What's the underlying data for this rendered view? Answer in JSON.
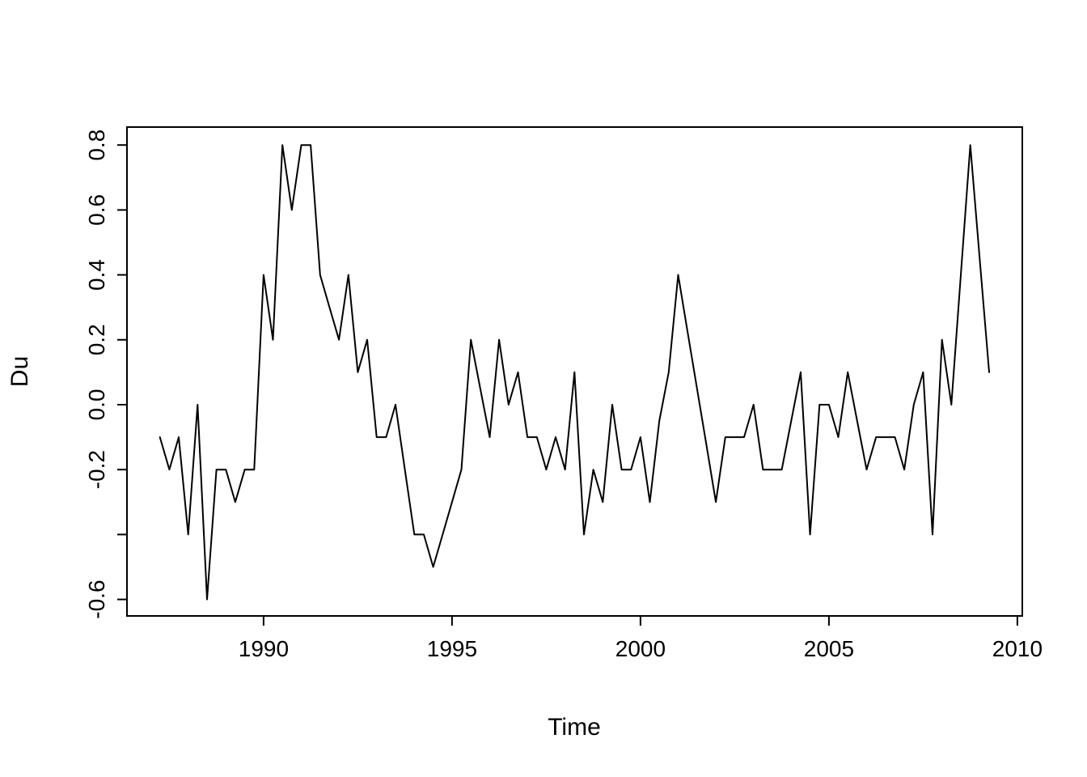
{
  "chart_data": {
    "type": "line",
    "title": "",
    "xlabel": "Time",
    "ylabel": "Du",
    "line_color": "#000000",
    "background_color": "#ffffff",
    "grid": "off",
    "legend": "none",
    "x_start": 1987.25,
    "x_step": 0.25,
    "xlim": [
      1986.36,
      2010.14
    ],
    "ylim": [
      -0.656,
      0.856
    ],
    "x_ticks": [
      {
        "v": 1990,
        "label": "1990"
      },
      {
        "v": 1995,
        "label": "1995"
      },
      {
        "v": 2000,
        "label": "2000"
      },
      {
        "v": 2005,
        "label": "2005"
      },
      {
        "v": 2010,
        "label": "2010"
      }
    ],
    "y_ticks": [
      {
        "v": 0.8,
        "label": "0.8"
      },
      {
        "v": 0.6,
        "label": "0.6"
      },
      {
        "v": 0.4,
        "label": "0.4"
      },
      {
        "v": 0.2,
        "label": "0.2"
      },
      {
        "v": 0.0,
        "label": "0.0"
      },
      {
        "v": -0.2,
        "label": "-0.2"
      },
      {
        "v": -0.4,
        "label": ""
      },
      {
        "v": -0.6,
        "label": "-0.6"
      }
    ],
    "values": [
      -0.1,
      -0.2,
      -0.1,
      -0.4,
      0.0,
      -0.6,
      -0.2,
      -0.2,
      -0.3,
      -0.2,
      -0.2,
      0.4,
      0.2,
      0.8,
      0.6,
      0.8,
      0.8,
      0.4,
      0.3,
      0.2,
      0.4,
      0.1,
      0.2,
      -0.1,
      -0.1,
      0.0,
      -0.2,
      -0.4,
      -0.4,
      -0.5,
      -0.4,
      -0.3,
      -0.2,
      0.2,
      0.05,
      -0.1,
      0.2,
      0.0,
      0.1,
      -0.1,
      -0.1,
      -0.2,
      -0.1,
      -0.2,
      0.1,
      -0.4,
      -0.2,
      -0.3,
      0.0,
      -0.2,
      -0.2,
      -0.1,
      -0.3,
      -0.05,
      0.1,
      0.4,
      0.225,
      0.05,
      -0.125,
      -0.3,
      -0.1,
      -0.1,
      -0.1,
      0.0,
      -0.2,
      -0.2,
      -0.2,
      -0.05,
      0.1,
      -0.4,
      0.0,
      0.0,
      -0.1,
      0.1,
      -0.05,
      -0.2,
      -0.1,
      -0.1,
      -0.1,
      -0.2,
      0.0,
      0.1,
      -0.4,
      0.2,
      0.0,
      0.4,
      0.8,
      0.45,
      0.1
    ]
  }
}
